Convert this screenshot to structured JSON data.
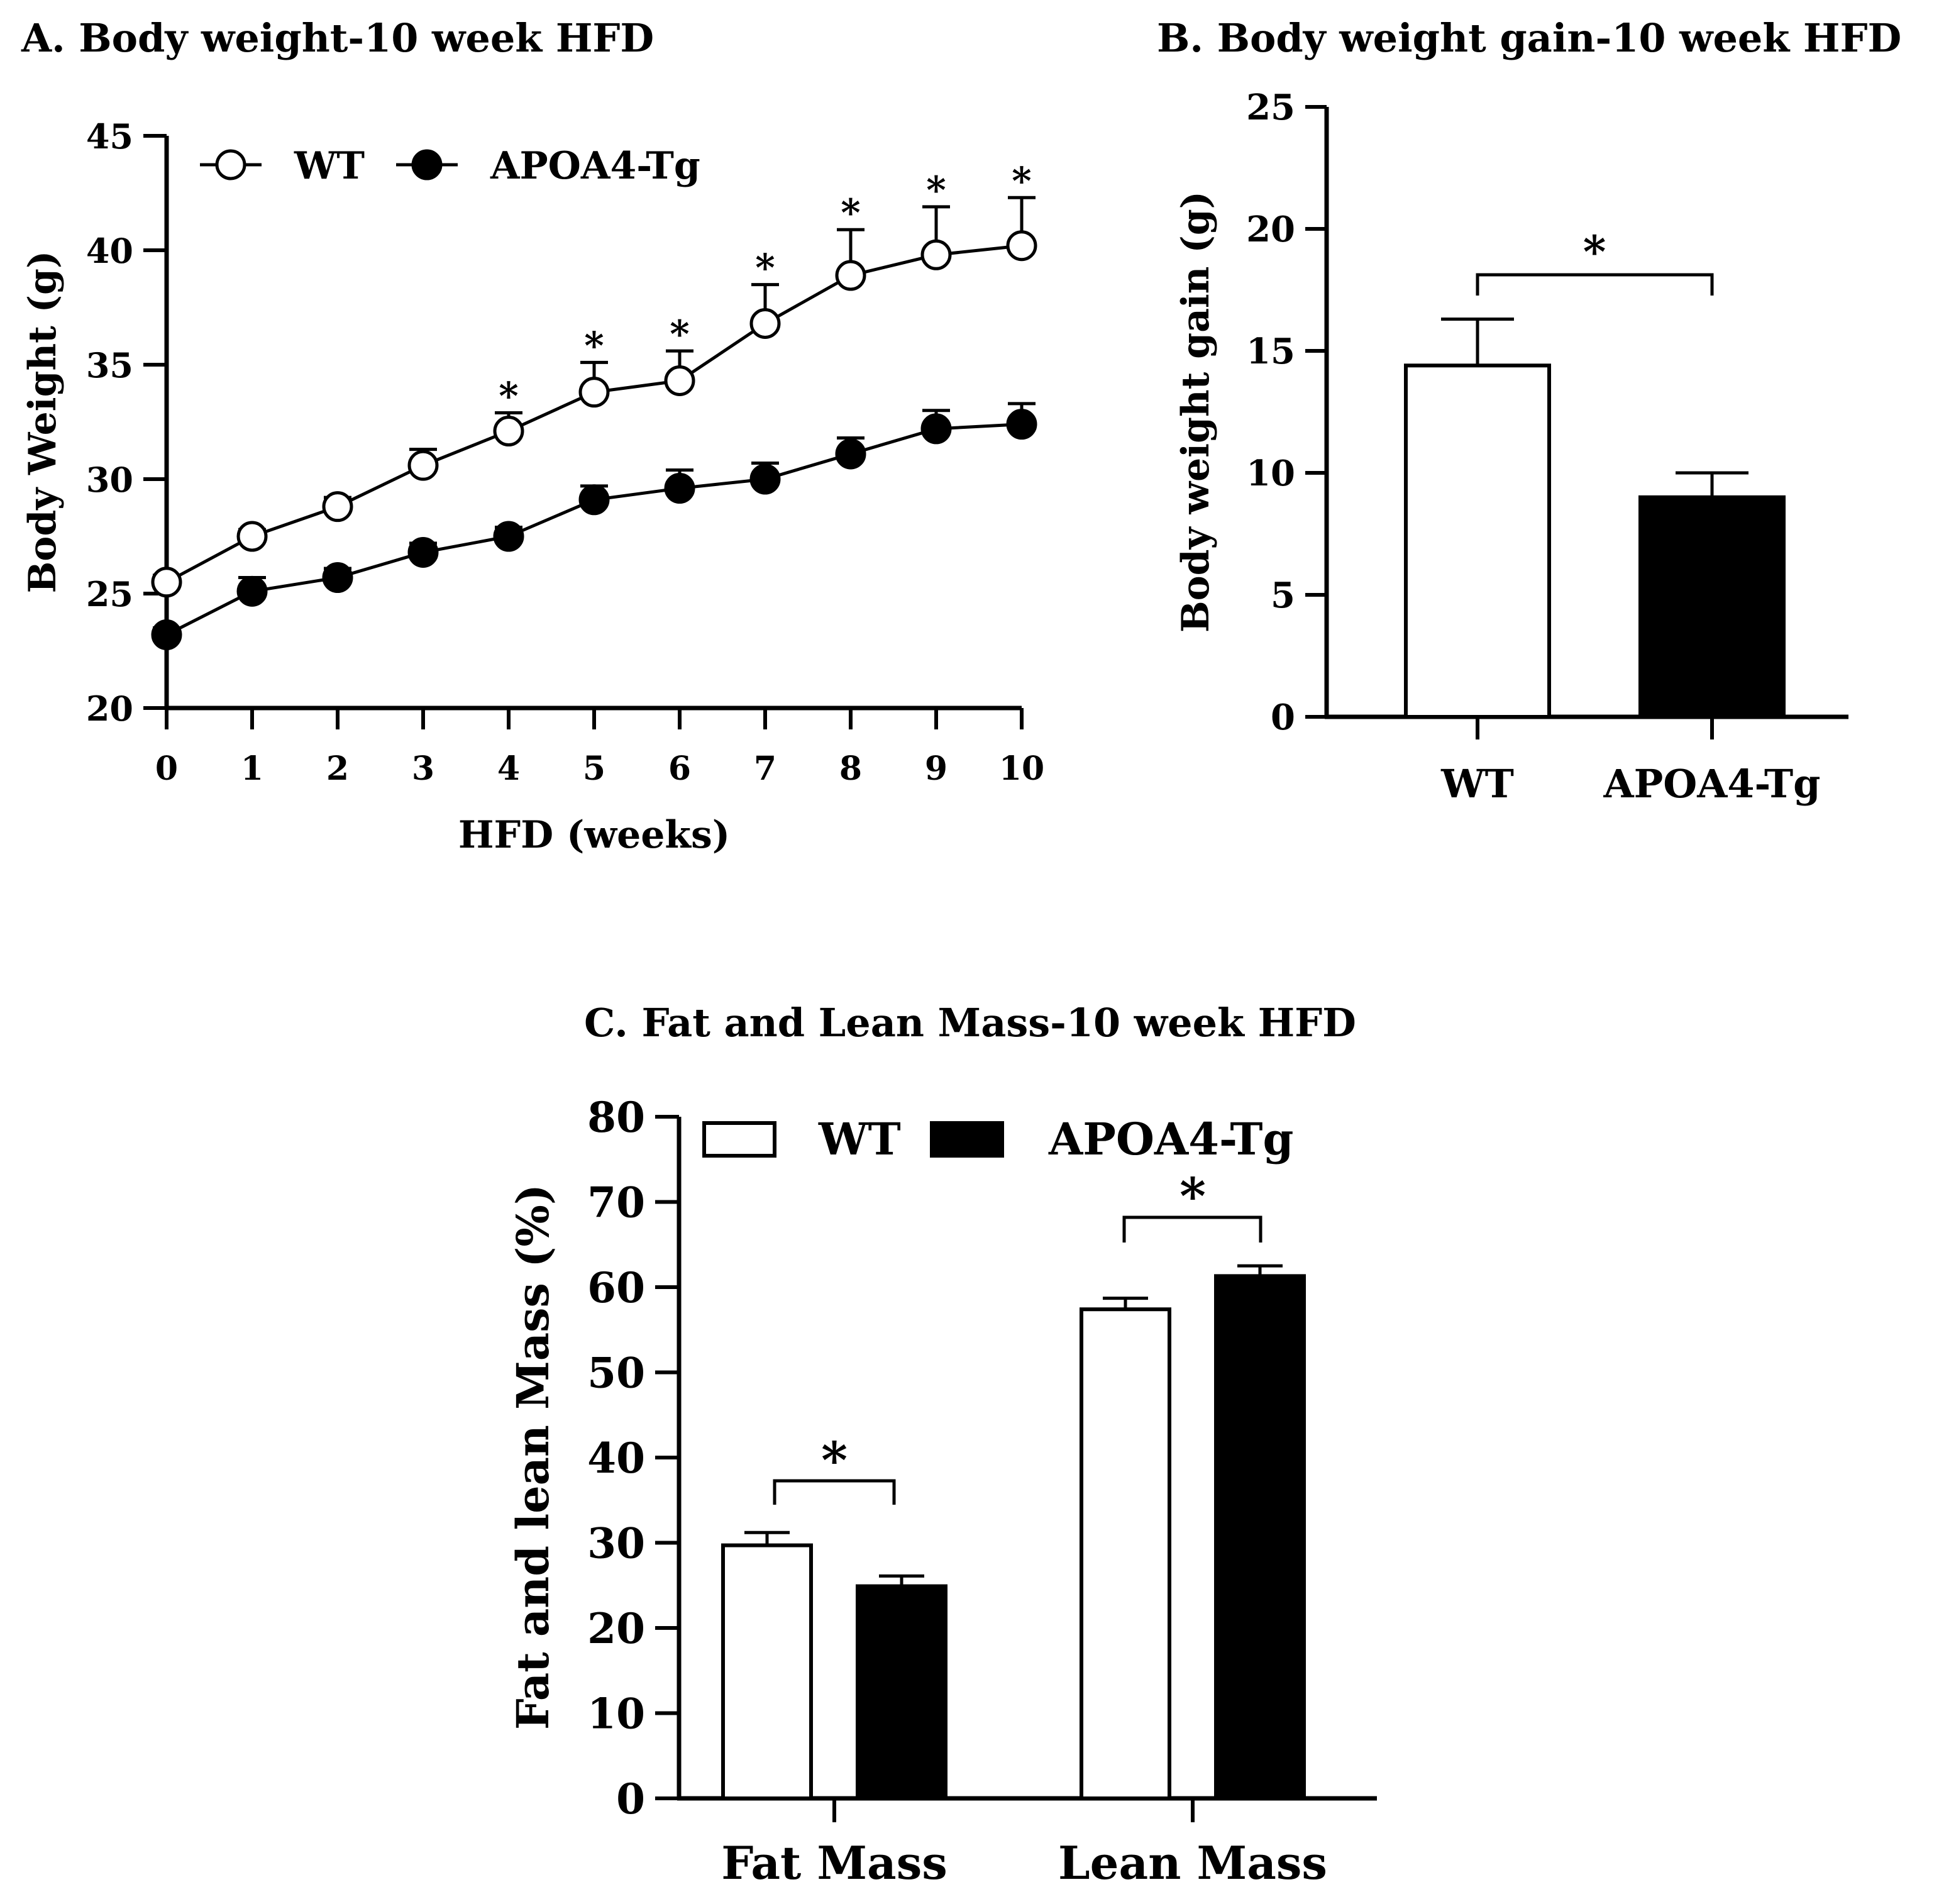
{
  "chart_data": [
    {
      "panel": "A",
      "type": "line",
      "title": "A. Body weight-10 week  HFD",
      "xlabel": "HFD (weeks)",
      "ylabel": "Body Weight (g)",
      "xlim": [
        0,
        10
      ],
      "ylim": [
        20,
        45
      ],
      "x_ticks": [
        "0",
        "1",
        "2",
        "3",
        "4",
        "5",
        "6",
        "7",
        "8",
        "9",
        "10"
      ],
      "y_ticks": [
        "20",
        "25",
        "30",
        "35",
        "40",
        "45"
      ],
      "x": [
        0,
        1,
        2,
        3,
        4,
        5,
        6,
        7,
        8,
        9,
        10
      ],
      "series": [
        {
          "name": "WT",
          "marker": "open-circle",
          "values": [
            25.5,
            27.5,
            28.8,
            30.6,
            32.1,
            33.8,
            34.3,
            36.8,
            38.9,
            39.8,
            40.2
          ],
          "errors": [
            0.3,
            0.3,
            0.4,
            0.7,
            0.8,
            1.3,
            1.3,
            1.7,
            2.0,
            2.1,
            2.1
          ],
          "significance": [
            "",
            "",
            "",
            "",
            "*",
            "*",
            "*",
            "*",
            "*",
            "*",
            "*"
          ]
        },
        {
          "name": "APOA4-Tg",
          "marker": "filled-circle",
          "values": [
            23.2,
            25.1,
            25.7,
            26.8,
            27.5,
            29.1,
            29.6,
            30.0,
            31.1,
            32.2,
            32.4
          ],
          "errors": [
            0.3,
            0.6,
            0.4,
            0.4,
            0.4,
            0.6,
            0.8,
            0.7,
            0.7,
            0.8,
            0.9
          ]
        }
      ],
      "legend": [
        "WT",
        "APOA4-Tg"
      ]
    },
    {
      "panel": "B",
      "type": "bar",
      "title": "B. Body weight gain-10 week HFD",
      "xlabel": "",
      "ylabel": "Body weight gain  (g)",
      "ylim": [
        0,
        25
      ],
      "y_ticks": [
        "0",
        "5",
        "10",
        "15",
        "20",
        "25"
      ],
      "categories": [
        "WT",
        "APOA4-Tg"
      ],
      "values": [
        14.4,
        9.0
      ],
      "errors": [
        1.9,
        1.0
      ],
      "fills": [
        "#ffffff",
        "#000000"
      ],
      "significance": "*"
    },
    {
      "panel": "C",
      "type": "bar",
      "title": "C. Fat and Lean Mass-10 week HFD",
      "xlabel": "",
      "ylabel": "Fat and lean Mass  (%)",
      "ylim": [
        0,
        80
      ],
      "y_ticks": [
        "0",
        "10",
        "20",
        "30",
        "40",
        "50",
        "60",
        "70",
        "80"
      ],
      "categories": [
        "Fat Mass",
        "Lean Mass"
      ],
      "series": [
        {
          "name": "WT",
          "fill": "#ffffff",
          "values": [
            29.7,
            57.4
          ],
          "errors": [
            1.5,
            1.3
          ]
        },
        {
          "name": "APOA4-Tg",
          "fill": "#000000",
          "values": [
            24.9,
            61.3
          ],
          "errors": [
            1.2,
            1.2
          ]
        }
      ],
      "legend": [
        "WT",
        "APOA4-Tg"
      ],
      "significance": [
        "*",
        "*"
      ]
    }
  ]
}
